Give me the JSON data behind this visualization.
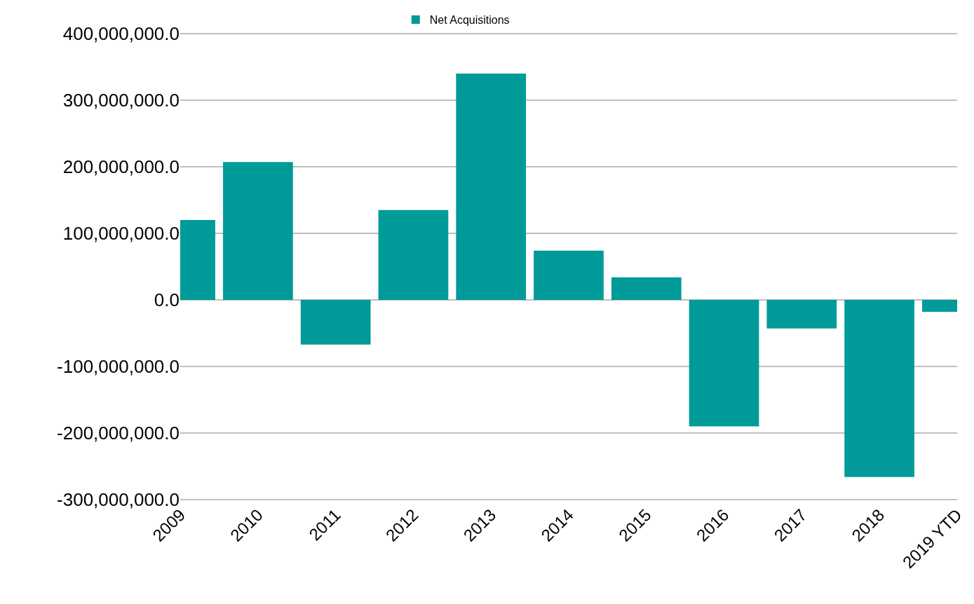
{
  "chart_data": {
    "type": "bar",
    "categories": [
      "2009",
      "2010",
      "2011",
      "2012",
      "2013",
      "2014",
      "2015",
      "2016",
      "2017",
      "2018",
      "2019 YTD"
    ],
    "series": [
      {
        "name": "Net Acquisitions",
        "color": "#009a98",
        "values": [
          120000000,
          207000000,
          -67000000,
          135000000,
          340000000,
          74000000,
          34000000,
          -190000000,
          -43000000,
          -266000000,
          -18000000
        ]
      }
    ],
    "ylim": [
      -300000000,
      400000000
    ],
    "yticks": [
      {
        "value": -300000000,
        "label": "-300,000,000.0"
      },
      {
        "value": -200000000,
        "label": "-200,000,000.0"
      },
      {
        "value": -100000000,
        "label": "-100,000,000.0"
      },
      {
        "value": 0,
        "label": "0.0"
      },
      {
        "value": 100000000,
        "label": "100,000,000.0"
      },
      {
        "value": 200000000,
        "label": "200,000,000.0"
      },
      {
        "value": 300000000,
        "label": "300,000,000.0"
      },
      {
        "value": 400000000,
        "label": "400,000,000.0"
      }
    ],
    "grid": "y",
    "legend": "top"
  }
}
